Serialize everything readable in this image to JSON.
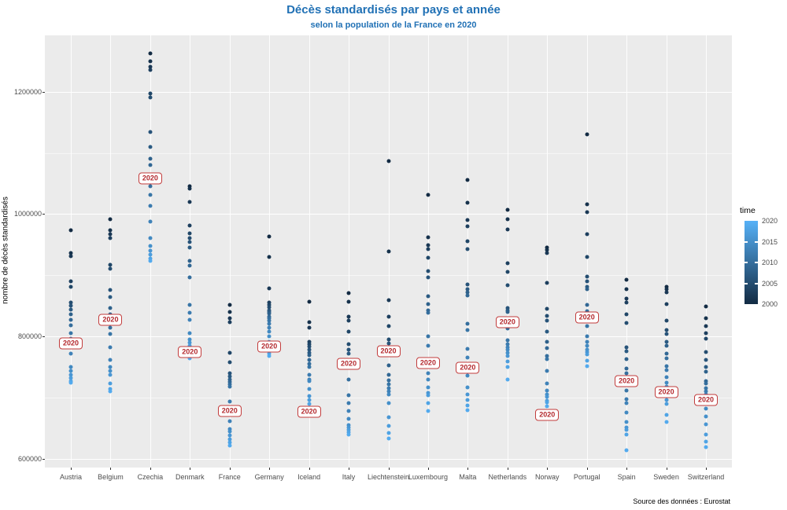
{
  "header": {
    "title": "Décès standardisés par pays et année",
    "subtitle": "selon la population de la France en 2020",
    "title_color": "#2171b5"
  },
  "chart_data": {
    "type": "scatter",
    "title": "Décès standardisés par pays et année",
    "subtitle": "selon la population de la France en 2020",
    "ylabel": "nombre de décès standardisés",
    "source": "Source des données : Eurostat",
    "grid": true,
    "y_axis": {
      "ticks": [
        600000,
        800000,
        1000000,
        1200000
      ],
      "minor_ticks": [
        700000,
        900000,
        1100000
      ],
      "range": [
        586000,
        1292000
      ]
    },
    "legend": {
      "title": "time",
      "position": "right",
      "ticks": [
        2020,
        2015,
        2010,
        2005,
        2000
      ],
      "color_year_2000": "#132B43",
      "color_year_2020": "#56B1F7"
    },
    "annotation_label": "2020",
    "annotation_color": "#c23b3b",
    "years_start": 2000,
    "years_end": 2020,
    "countries": [
      {
        "name": "Austria",
        "values_2000_2019": [
          974000,
          937000,
          931000,
          890000,
          881000,
          856000,
          851000,
          844000,
          836000,
          827000,
          818000,
          806000,
          797000,
          772000,
          750000,
          744000,
          737000,
          732000,
          727000,
          724000
        ],
        "value_2020": 789000
      },
      {
        "name": "Belgium",
        "values_2000_2019": [
          992000,
          974000,
          967000,
          961000,
          917000,
          911000,
          876000,
          865000,
          847000,
          836000,
          815000,
          804000,
          783000,
          762000,
          750000,
          744000,
          737000,
          723000,
          714000,
          710000
        ],
        "value_2020": 827000
      },
      {
        "name": "Czechia",
        "values_2000_2019": [
          1262000,
          1249000,
          1241000,
          1236000,
          1197000,
          1190000,
          1134000,
          1110000,
          1091000,
          1080000,
          1046000,
          1032000,
          1014000,
          988000,
          961000,
          948000,
          940000,
          934000,
          928000,
          924000
        ],
        "value_2020": 1059000
      },
      {
        "name": "Denmark",
        "values_2000_2019": [
          1046000,
          1042000,
          1020000,
          982000,
          969000,
          961000,
          955000,
          946000,
          924000,
          916000,
          897000,
          852000,
          839000,
          827000,
          806000,
          795000,
          790000,
          785000,
          772000,
          765000
        ],
        "value_2020": 775000
      },
      {
        "name": "France",
        "values_2000_2019": [
          852000,
          840000,
          830000,
          824000,
          773000,
          758000,
          740000,
          735000,
          730000,
          726000,
          722000,
          718000,
          694000,
          662000,
          649000,
          645000,
          639000,
          632000,
          627000,
          622000
        ],
        "value_2020": 678000
      },
      {
        "name": "Germany",
        "values_2000_2019": [
          963000,
          930000,
          879000,
          856000,
          852000,
          848000,
          843000,
          840000,
          837000,
          833000,
          830000,
          826000,
          821000,
          815000,
          808000,
          800000,
          792000,
          778000,
          772000,
          768000
        ],
        "value_2020": 784000
      },
      {
        "name": "Iceland",
        "values_2000_2019": [
          857000,
          824000,
          815000,
          792000,
          788000,
          784000,
          779000,
          774000,
          770000,
          762000,
          755000,
          750000,
          737000,
          730000,
          727000,
          714000,
          703000,
          697000,
          690000,
          684000
        ],
        "value_2020": 677000
      },
      {
        "name": "Italy",
        "values_2000_2019": [
          871000,
          857000,
          833000,
          826000,
          808000,
          787000,
          778000,
          772000,
          762000,
          757000,
          730000,
          704000,
          691000,
          678000,
          665000,
          655000,
          652000,
          648000,
          644000,
          640000
        ],
        "value_2020": 755000
      },
      {
        "name": "Liechtenstein",
        "values_2000_2019": [
          1086000,
          939000,
          860000,
          833000,
          817000,
          795000,
          789000,
          782000,
          753000,
          737000,
          728000,
          722000,
          716000,
          710000,
          705000,
          691000,
          668000,
          654000,
          642000,
          634000
        ],
        "value_2020": 776000
      },
      {
        "name": "Luxembourg",
        "values_2000_2019": [
          1032000,
          962000,
          949000,
          943000,
          929000,
          907000,
          897000,
          866000,
          853000,
          843000,
          839000,
          800000,
          785000,
          740000,
          730000,
          717000,
          708000,
          704000,
          691000,
          678000
        ],
        "value_2020": 757000
      },
      {
        "name": "Malta",
        "values_2000_2019": [
          1056000,
          1018000,
          990000,
          980000,
          956000,
          943000,
          885000,
          877000,
          872000,
          867000,
          821000,
          811000,
          780000,
          766000,
          736000,
          717000,
          706000,
          697000,
          688000,
          680000
        ],
        "value_2020": 749000
      },
      {
        "name": "Netherlands",
        "values_2000_2019": [
          1007000,
          991000,
          975000,
          920000,
          906000,
          884000,
          847000,
          843000,
          840000,
          816000,
          813000,
          794000,
          788000,
          783000,
          778000,
          773000,
          768000,
          759000,
          750000,
          730000
        ],
        "value_2020": 824000
      },
      {
        "name": "Norway",
        "values_2000_2019": [
          946000,
          941000,
          936000,
          888000,
          845000,
          834000,
          826000,
          808000,
          791000,
          781000,
          768000,
          763000,
          744000,
          723000,
          712000,
          705000,
          701000,
          695000,
          692000,
          686000
        ],
        "value_2020": 672000
      },
      {
        "name": "Portugal",
        "values_2000_2019": [
          1130000,
          1016000,
          1003000,
          967000,
          930000,
          898000,
          890000,
          881000,
          877000,
          852000,
          842000,
          817000,
          800000,
          791000,
          785000,
          779000,
          775000,
          771000,
          760000,
          752000
        ],
        "value_2020": 831000
      },
      {
        "name": "Spain",
        "values_2000_2019": [
          893000,
          877000,
          862000,
          856000,
          836000,
          822000,
          782000,
          776000,
          763000,
          748000,
          740000,
          712000,
          698000,
          691000,
          676000,
          660000,
          652000,
          648000,
          640000,
          614000
        ],
        "value_2020": 727000
      },
      {
        "name": "Sweden",
        "values_2000_2019": [
          881000,
          877000,
          872000,
          853000,
          826000,
          810000,
          804000,
          791000,
          785000,
          772000,
          765000,
          752000,
          745000,
          733000,
          725000,
          718000,
          697000,
          690000,
          672000,
          660000
        ],
        "value_2020": 709000
      },
      {
        "name": "Switzerland",
        "values_2000_2019": [
          849000,
          830000,
          817000,
          806000,
          797000,
          775000,
          762000,
          750000,
          742000,
          727000,
          723000,
          716000,
          711000,
          706000,
          682000,
          670000,
          657000,
          640000,
          628000,
          620000
        ],
        "value_2020": 697000
      }
    ]
  }
}
